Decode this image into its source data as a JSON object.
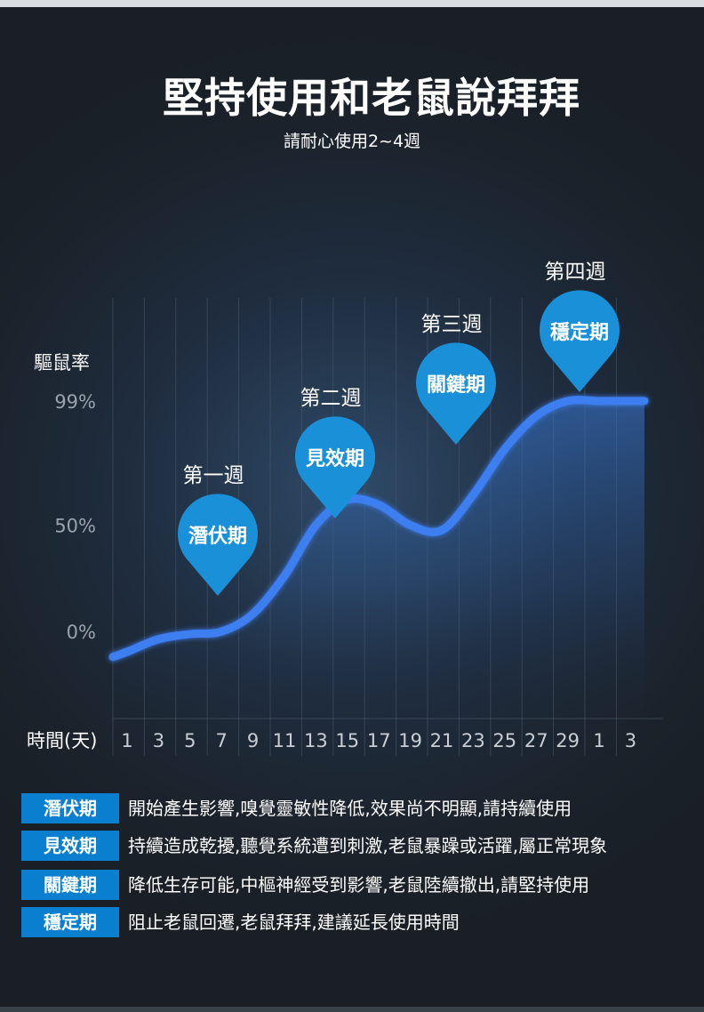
{
  "header": {
    "title": "堅持使用和老鼠說拜拜",
    "subtitle": "請耐心使用2~4週"
  },
  "chart_data": {
    "type": "line",
    "ylabel": "驅鼠率",
    "xlabel": "時間(天)",
    "y_ticks": [
      "99%",
      "50%",
      "0%"
    ],
    "x_ticks": [
      "1",
      "3",
      "5",
      "7",
      "9",
      "11",
      "13",
      "15",
      "17",
      "19",
      "21",
      "23",
      "25",
      "27",
      "29",
      "1",
      "3"
    ],
    "series": [
      {
        "x_index": [
          0,
          1,
          2,
          3,
          4,
          5,
          6,
          7,
          8,
          9,
          10,
          11,
          12,
          13,
          14,
          15,
          16
        ],
        "y_percent": [
          0,
          5,
          7,
          8,
          15,
          30,
          50,
          60,
          58,
          50,
          48,
          62,
          80,
          93,
          99,
          99,
          99
        ]
      }
    ],
    "markers": [
      {
        "week": "第一週",
        "phase": "潛伏期"
      },
      {
        "week": "第二週",
        "phase": "見效期"
      },
      {
        "week": "第三週",
        "phase": "關鍵期"
      },
      {
        "week": "第四週",
        "phase": "穩定期"
      }
    ],
    "colors": {
      "line": "#3d7ef0",
      "pin": "#1a90d8",
      "grid": "#4a5b6e"
    }
  },
  "legend": [
    {
      "phase": "潛伏期",
      "desc": "開始產生影響,嗅覺靈敏性降低,效果尚不明顯,請持續使用"
    },
    {
      "phase": "見效期",
      "desc": "持續造成乾擾,聽覺系統遭到刺激,老鼠暴躁或活躍,屬正常現象"
    },
    {
      "phase": "關鍵期",
      "desc": "降低生存可能,中樞神經受到影響,老鼠陸續撤出,請堅持使用"
    },
    {
      "phase": "穩定期",
      "desc": "阻止老鼠回遷,老鼠拜拜,建議延長使用時間"
    }
  ]
}
